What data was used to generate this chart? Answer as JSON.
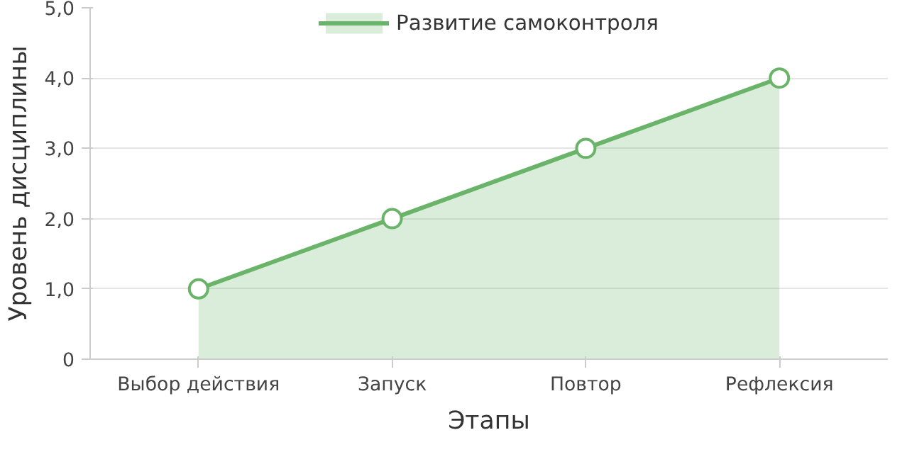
{
  "chart_data": {
    "type": "area",
    "xlabel": "Этапы",
    "ylabel": "Уровень дисциплины",
    "categories": [
      "Выбор действия",
      "Запуск",
      "Повтор",
      "Рефлексия"
    ],
    "series": [
      {
        "name": "Развитие самоконтроля",
        "color": "#6ab46a",
        "values": [
          1,
          2,
          3,
          4
        ]
      }
    ],
    "ylim": [
      0,
      5
    ],
    "yticks": [
      0,
      {
        "value": 1,
        "label": "1,0"
      },
      {
        "value": 2,
        "label": "2,0"
      },
      {
        "value": 3,
        "label": "3,0"
      },
      {
        "value": 4,
        "label": "4,0"
      },
      {
        "value": 5,
        "label": "5,0"
      }
    ],
    "grid": "y",
    "legend": "top",
    "marker": "circle",
    "line_style": "solid"
  }
}
